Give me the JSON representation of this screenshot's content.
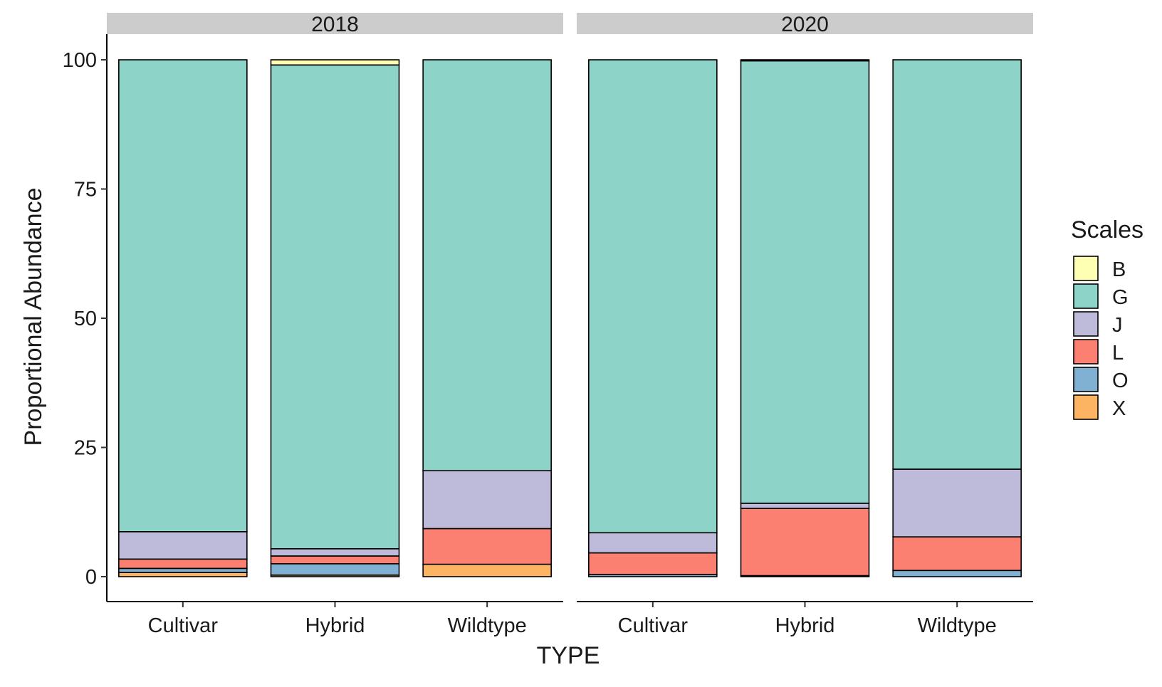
{
  "chart_data": {
    "type": "bar",
    "stacked": true,
    "xlabel": "TYPE",
    "ylabel": "Proportional Abundance",
    "ylim": [
      0,
      100
    ],
    "yticks": [
      0,
      25,
      50,
      75,
      100
    ],
    "categories": [
      "Cultivar",
      "Hybrid",
      "Wildtype"
    ],
    "legend": {
      "title": "Scales",
      "position": "right",
      "items": [
        {
          "name": "B",
          "color": "#FFFFB3"
        },
        {
          "name": "G",
          "color": "#8DD3C7"
        },
        {
          "name": "J",
          "color": "#BEBADA"
        },
        {
          "name": "L",
          "color": "#FB8072"
        },
        {
          "name": "O",
          "color": "#80B1D3"
        },
        {
          "name": "X",
          "color": "#FDB462"
        }
      ]
    },
    "stack_order_bottom_to_top": [
      "X",
      "O",
      "L",
      "J",
      "G",
      "B"
    ],
    "panels": [
      {
        "label": "2018",
        "bars": [
          {
            "category": "Cultivar",
            "values": {
              "X": 0.8,
              "O": 0.8,
              "L": 1.8,
              "J": 5.3,
              "G": 91.3,
              "B": 0.0
            }
          },
          {
            "category": "Hybrid",
            "values": {
              "X": 0.3,
              "O": 2.2,
              "L": 1.5,
              "J": 1.4,
              "G": 93.6,
              "B": 1.0
            }
          },
          {
            "category": "Wildtype",
            "values": {
              "X": 2.4,
              "O": 0.0,
              "L": 6.9,
              "J": 11.2,
              "G": 79.5,
              "B": 0.0
            }
          }
        ]
      },
      {
        "label": "2020",
        "bars": [
          {
            "category": "Cultivar",
            "values": {
              "X": 0.0,
              "O": 0.4,
              "L": 4.2,
              "J": 3.9,
              "G": 91.5,
              "B": 0.0
            }
          },
          {
            "category": "Hybrid",
            "values": {
              "X": 0.0,
              "O": 0.2,
              "L": 13.0,
              "J": 1.0,
              "G": 85.6,
              "B": 0.2
            }
          },
          {
            "category": "Wildtype",
            "values": {
              "X": 0.0,
              "O": 1.2,
              "L": 6.5,
              "J": 13.1,
              "G": 79.2,
              "B": 0.0
            }
          }
        ]
      }
    ]
  }
}
